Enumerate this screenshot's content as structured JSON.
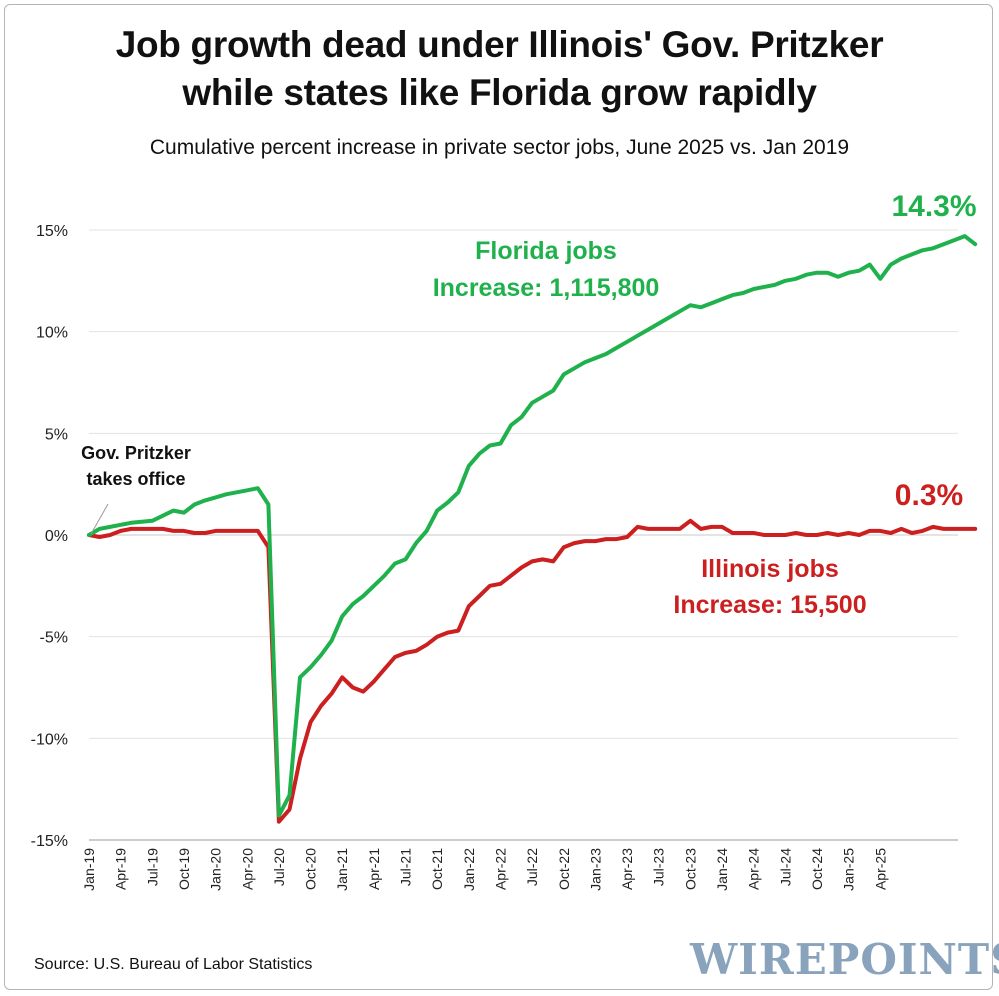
{
  "header": {
    "title_line1": "Job growth dead under Illinois' Gov. Pritzker",
    "title_line2": "while states like Florida grow rapidly",
    "subtitle": "Cumulative percent increase in private sector jobs, June 2025 vs. Jan 2019"
  },
  "footer": {
    "source": "Source: U.S. Bureau of Labor Statistics",
    "brand": "WIREPOINTS"
  },
  "chart_data": {
    "type": "line",
    "title": "Job growth dead under Illinois' Gov. Pritzker while states like Florida grow rapidly",
    "subtitle": "Cumulative percent increase in private sector jobs, June 2025 vs. Jan 2019",
    "xlabel": "",
    "ylabel": "",
    "ylim": [
      -15,
      15
    ],
    "y_ticks": [
      15,
      10,
      5,
      0,
      -5,
      -10,
      -15
    ],
    "y_tick_labels": [
      "15%",
      "10%",
      "5%",
      "0%",
      "-5%",
      "-10%",
      "-15%"
    ],
    "x_tick_labels": [
      "Jan-19",
      "Apr-19",
      "Jul-19",
      "Oct-19",
      "Jan-20",
      "Apr-20",
      "Jul-20",
      "Oct-20",
      "Jan-21",
      "Apr-21",
      "Jul-21",
      "Oct-21",
      "Jan-22",
      "Apr-22",
      "Jul-22",
      "Oct-22",
      "Jan-23",
      "Apr-23",
      "Jul-23",
      "Oct-23",
      "Jan-24",
      "Apr-24",
      "Jul-24",
      "Oct-24",
      "Jan-25",
      "Apr-25"
    ],
    "grid": "horizontal",
    "x_start": "Jan-19",
    "x_frequency": "monthly",
    "series": [
      {
        "color": "#1fb14c",
        "values": [
          0.0,
          0.3,
          0.4,
          0.5,
          0.6,
          0.65,
          0.7,
          0.95,
          1.2,
          1.1,
          1.5,
          1.7,
          1.85,
          2.0,
          2.1,
          2.2,
          2.3,
          1.5,
          -13.8,
          -12.8,
          -7.0,
          -6.5,
          -5.9,
          -5.2,
          -4.0,
          -3.4,
          -3.0,
          -2.5,
          -2.0,
          -1.4,
          -1.2,
          -0.4,
          0.2,
          1.2,
          1.6,
          2.1,
          3.4,
          4.0,
          4.4,
          4.5,
          5.4,
          5.8,
          6.5,
          6.8,
          7.1,
          7.9,
          8.2,
          8.5,
          8.7,
          8.9,
          9.2,
          9.5,
          9.8,
          10.1,
          10.4,
          10.7,
          11.0,
          11.3,
          11.2,
          11.4,
          11.6,
          11.8,
          11.9,
          12.1,
          12.2,
          12.3,
          12.5,
          12.6,
          12.8,
          12.9,
          12.9,
          12.7,
          12.9,
          13.0,
          13.3,
          12.6,
          13.3,
          13.6,
          13.8,
          14.0,
          14.1,
          14.3,
          14.5,
          14.7,
          14.3
        ]
      },
      {
        "color": "#cc1f1f",
        "values": [
          0.0,
          -0.1,
          0.0,
          0.2,
          0.3,
          0.3,
          0.3,
          0.3,
          0.2,
          0.2,
          0.1,
          0.1,
          0.2,
          0.2,
          0.2,
          0.2,
          0.2,
          -0.6,
          -14.1,
          -13.5,
          -11.0,
          -9.2,
          -8.4,
          -7.8,
          -7.0,
          -7.5,
          -7.7,
          -7.2,
          -6.6,
          -6.0,
          -5.8,
          -5.7,
          -5.4,
          -5.0,
          -4.8,
          -4.7,
          -3.5,
          -3.0,
          -2.5,
          -2.4,
          -2.0,
          -1.6,
          -1.3,
          -1.2,
          -1.3,
          -0.6,
          -0.4,
          -0.3,
          -0.3,
          -0.2,
          -0.2,
          -0.1,
          0.4,
          0.3,
          0.3,
          0.3,
          0.3,
          0.7,
          0.3,
          0.4,
          0.4,
          0.1,
          0.1,
          0.1,
          0.0,
          0.0,
          0.0,
          0.1,
          0.0,
          0.0,
          0.1,
          0.0,
          0.1,
          0.0,
          0.2,
          0.2,
          0.1,
          0.3,
          0.1,
          0.2,
          0.4,
          0.3,
          0.3,
          0.3,
          0.3
        ]
      }
    ],
    "annotations": {
      "pritzker_line1": "Gov. Pritzker",
      "pritzker_line2": "takes office",
      "florida_line1": "Florida jobs",
      "florida_line2": "Increase: 1,115,800",
      "florida_end": "14.3%",
      "illinois_line1": "Illinois jobs",
      "illinois_line2": "Increase: 15,500",
      "illinois_end": "0.3%"
    }
  }
}
